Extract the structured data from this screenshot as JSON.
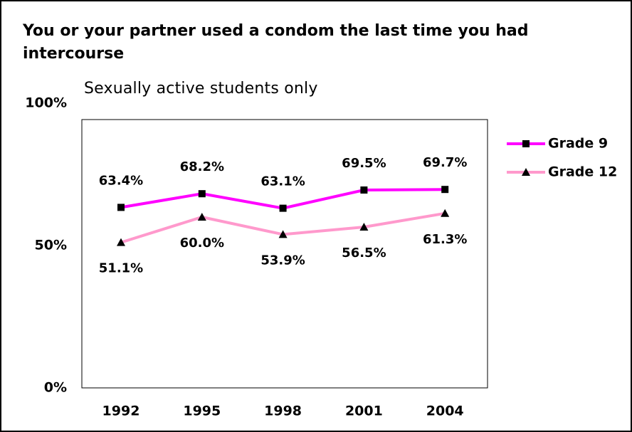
{
  "chart_data": {
    "type": "line",
    "title": "You or your partner used a condom the last time you had intercourse",
    "subtitle": "Sexually active students only",
    "categories": [
      "1992",
      "1995",
      "1998",
      "2001",
      "2004"
    ],
    "series": [
      {
        "name": "Grade 9",
        "color": "#ff00ff",
        "marker": "square",
        "values": [
          63.4,
          68.2,
          63.1,
          69.5,
          69.7
        ],
        "value_labels": [
          "63.4%",
          "68.2%",
          "63.1%",
          "69.5%",
          "69.7%"
        ]
      },
      {
        "name": "Grade 12",
        "color": "#ff99cc",
        "marker": "triangle",
        "values": [
          51.1,
          60.0,
          53.9,
          56.5,
          61.3
        ],
        "value_labels": [
          "51.1%",
          "60.0%",
          "53.9%",
          "56.5%",
          "61.3%"
        ]
      }
    ],
    "ylim": [
      0,
      100
    ],
    "yticks": [
      {
        "value": 0,
        "label": "0%"
      },
      {
        "value": 50,
        "label": "50%"
      },
      {
        "value": 100,
        "label": "100%"
      }
    ],
    "legend": "right"
  }
}
